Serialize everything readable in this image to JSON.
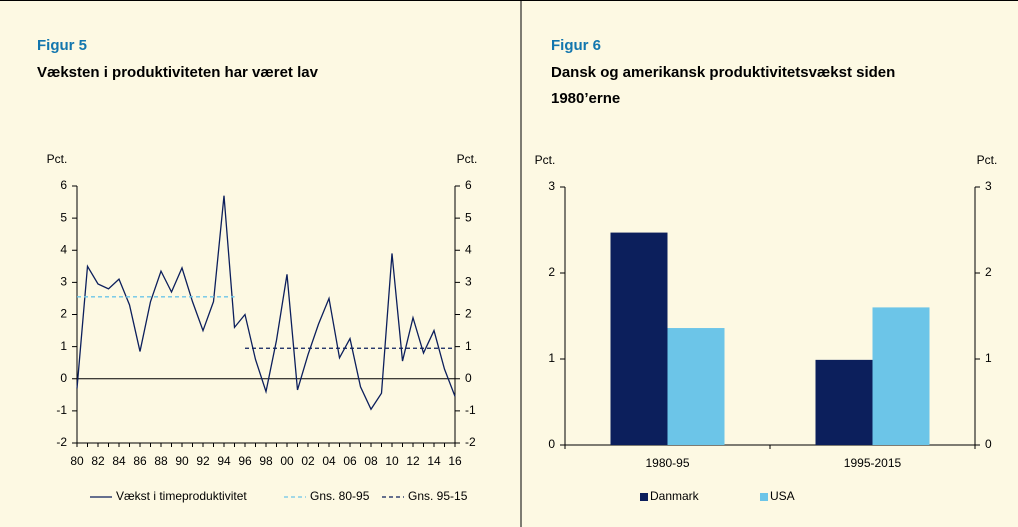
{
  "chart_data": [
    {
      "type": "line",
      "title": "Figur 5",
      "subtitle": "Væksten i produktiviteten har været lav",
      "ylabel": "Pct.",
      "y2label": "Pct.",
      "categories": [
        "80",
        null,
        "82",
        null,
        "84",
        null,
        "86",
        null,
        "88",
        null,
        "90",
        null,
        "92",
        null,
        "94",
        null,
        "96",
        null,
        "98",
        null,
        "00",
        null,
        "02",
        null,
        "04",
        null,
        "06",
        null,
        "08",
        null,
        "10",
        null,
        "12",
        null,
        "14",
        null,
        "16"
      ],
      "series": [
        {
          "name": "Vækst i timeproduktivitet",
          "color": "#0c1f5c",
          "dashed": false,
          "values": [
            -0.3,
            3.5,
            2.95,
            2.8,
            3.1,
            2.3,
            0.85,
            2.4,
            3.35,
            2.7,
            3.45,
            2.4,
            1.5,
            2.4,
            5.7,
            1.6,
            2.0,
            0.6,
            -0.4,
            1.2,
            3.25,
            -0.35,
            0.75,
            1.7,
            2.5,
            0.65,
            1.25,
            -0.25,
            -0.95,
            -0.45,
            3.9,
            0.55,
            1.9,
            0.8,
            1.5,
            0.3,
            -0.55
          ]
        },
        {
          "name": "Gns. 80-95",
          "color": "#6cc5e8",
          "dashed": true,
          "values": [
            2.55,
            2.55,
            2.55,
            2.55,
            2.55,
            2.55,
            2.55,
            2.55,
            2.55,
            2.55,
            2.55,
            2.55,
            2.55,
            2.55,
            2.55,
            2.55,
            null,
            null,
            null,
            null,
            null,
            null,
            null,
            null,
            null,
            null,
            null,
            null,
            null,
            null,
            null,
            null,
            null,
            null,
            null,
            null,
            null
          ]
        },
        {
          "name": "Gns. 95-15",
          "color": "#0c1f5c",
          "dashed": true,
          "values": [
            null,
            null,
            null,
            null,
            null,
            null,
            null,
            null,
            null,
            null,
            null,
            null,
            null,
            null,
            null,
            null,
            0.95,
            0.95,
            0.95,
            0.95,
            0.95,
            0.95,
            0.95,
            0.95,
            0.95,
            0.95,
            0.95,
            0.95,
            0.95,
            0.95,
            0.95,
            0.95,
            0.95,
            0.95,
            0.95,
            0.95,
            0.95
          ]
        }
      ],
      "ylim": [
        -2,
        6
      ],
      "yticks": [
        -2,
        -1,
        0,
        1,
        2,
        3,
        4,
        5,
        6
      ],
      "y2lim": [
        -2,
        6
      ],
      "y2ticks": [
        -2,
        -1,
        0,
        1,
        2,
        3,
        4,
        5,
        6
      ]
    },
    {
      "type": "bar",
      "title": "Figur 6",
      "subtitle": "Dansk og amerikansk produktivitetsvækst siden 1980’erne",
      "ylabel": "Pct.",
      "y2label": "Pct.",
      "categories": [
        "1980-95",
        "1995-2015"
      ],
      "series": [
        {
          "name": "Danmark",
          "color": "#0c1f5c",
          "values": [
            2.47,
            0.99
          ]
        },
        {
          "name": "USA",
          "color": "#6cc5e8",
          "values": [
            1.36,
            1.6
          ]
        }
      ],
      "ylim": [
        0,
        3
      ],
      "yticks": [
        0,
        1,
        2,
        3
      ],
      "y2lim": [
        0,
        3
      ],
      "y2ticks": [
        0,
        1,
        2,
        3
      ]
    }
  ]
}
